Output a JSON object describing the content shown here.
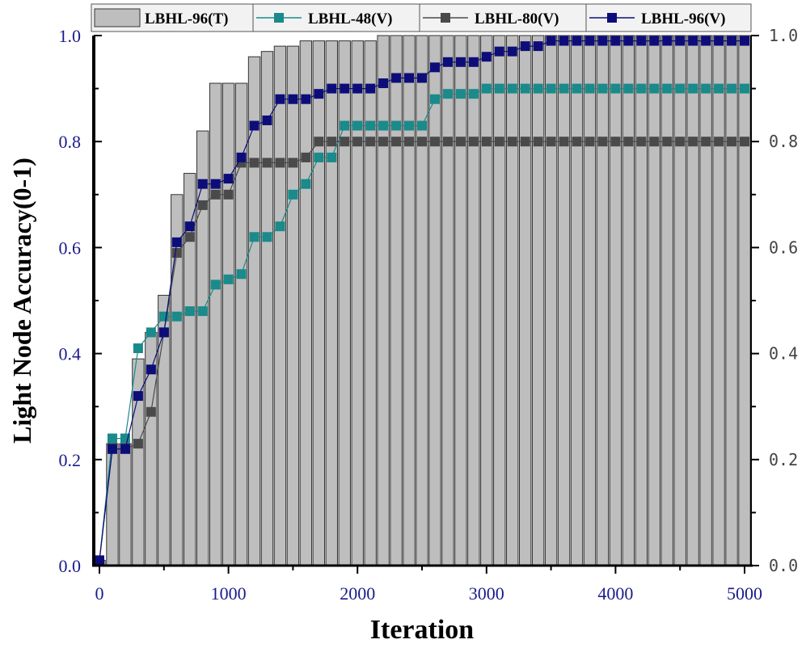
{
  "chart_data": {
    "type": "bar+line",
    "xlabel": "Iteration",
    "ylabel": "Light Node Accuracy(0-1)",
    "xlim": [
      0,
      5000
    ],
    "ylim": [
      0,
      1
    ],
    "x_ticks": [
      "0",
      "1000",
      "2000",
      "3000",
      "4000",
      "5000"
    ],
    "y_ticks_left": [
      "0.0",
      "0.2",
      "0.4",
      "0.6",
      "0.8",
      "1.0"
    ],
    "y_ticks_right": [
      "0.0",
      "0.2",
      "0.4",
      "0.6",
      "0.8",
      "1.0"
    ],
    "legend": {
      "placement": "top",
      "items": [
        "LBHL-96(T)",
        "LBHL-48(V)",
        "LBHL-80(V)",
        "LBHL-96(V)"
      ]
    },
    "x": [
      0,
      100,
      200,
      300,
      400,
      500,
      600,
      700,
      800,
      900,
      1000,
      1100,
      1200,
      1300,
      1400,
      1500,
      1600,
      1700,
      1800,
      1900,
      2000,
      2100,
      2200,
      2300,
      2400,
      2500,
      2600,
      2700,
      2800,
      2900,
      3000,
      3100,
      3200,
      3300,
      3400,
      3500,
      3600,
      3700,
      3800,
      3900,
      4000,
      4100,
      4200,
      4300,
      4400,
      4500,
      4600,
      4700,
      4800,
      4900,
      5000
    ],
    "series": [
      {
        "name": "LBHL-96(T)",
        "kind": "bar",
        "color": "#bebebe",
        "values": [
          0.01,
          0.23,
          0.23,
          0.39,
          0.44,
          0.51,
          0.7,
          0.74,
          0.82,
          0.91,
          0.91,
          0.91,
          0.96,
          0.97,
          0.98,
          0.98,
          0.99,
          0.99,
          0.99,
          0.99,
          0.99,
          0.99,
          1.0,
          1.0,
          1.0,
          1.0,
          1.0,
          1.0,
          1.0,
          1.0,
          1.0,
          1.0,
          1.0,
          1.0,
          1.0,
          1.0,
          1.0,
          1.0,
          1.0,
          1.0,
          1.0,
          1.0,
          1.0,
          1.0,
          1.0,
          1.0,
          1.0,
          1.0,
          1.0,
          1.0,
          1.0
        ]
      },
      {
        "name": "LBHL-48(V)",
        "kind": "line",
        "color": "#1a8a8a",
        "values": [
          0.01,
          0.24,
          0.24,
          0.41,
          0.44,
          0.47,
          0.47,
          0.48,
          0.48,
          0.53,
          0.54,
          0.55,
          0.62,
          0.62,
          0.64,
          0.7,
          0.72,
          0.77,
          0.77,
          0.83,
          0.83,
          0.83,
          0.83,
          0.83,
          0.83,
          0.83,
          0.88,
          0.89,
          0.89,
          0.89,
          0.9,
          0.9,
          0.9,
          0.9,
          0.9,
          0.9,
          0.9,
          0.9,
          0.9,
          0.9,
          0.9,
          0.9,
          0.9,
          0.9,
          0.9,
          0.9,
          0.9,
          0.9,
          0.9,
          0.9,
          0.9
        ]
      },
      {
        "name": "LBHL-80(V)",
        "kind": "line",
        "color": "#4a4a4a",
        "values": [
          0.01,
          0.22,
          0.22,
          0.23,
          0.29,
          0.44,
          0.59,
          0.62,
          0.68,
          0.7,
          0.7,
          0.76,
          0.76,
          0.76,
          0.76,
          0.76,
          0.77,
          0.8,
          0.8,
          0.8,
          0.8,
          0.8,
          0.8,
          0.8,
          0.8,
          0.8,
          0.8,
          0.8,
          0.8,
          0.8,
          0.8,
          0.8,
          0.8,
          0.8,
          0.8,
          0.8,
          0.8,
          0.8,
          0.8,
          0.8,
          0.8,
          0.8,
          0.8,
          0.8,
          0.8,
          0.8,
          0.8,
          0.8,
          0.8,
          0.8,
          0.8
        ]
      },
      {
        "name": "LBHL-96(V)",
        "kind": "line",
        "color": "#0d0d7a",
        "values": [
          0.01,
          0.22,
          0.22,
          0.32,
          0.37,
          0.44,
          0.61,
          0.64,
          0.72,
          0.72,
          0.73,
          0.77,
          0.83,
          0.84,
          0.88,
          0.88,
          0.88,
          0.89,
          0.9,
          0.9,
          0.9,
          0.9,
          0.91,
          0.92,
          0.92,
          0.92,
          0.94,
          0.95,
          0.95,
          0.95,
          0.96,
          0.97,
          0.97,
          0.98,
          0.98,
          0.99,
          0.99,
          0.99,
          0.99,
          0.99,
          0.99,
          0.99,
          0.99,
          0.99,
          0.99,
          0.99,
          0.99,
          0.99,
          0.99,
          0.99,
          0.99
        ]
      }
    ],
    "colors": {
      "tick_label_left": "#1a1a8c",
      "tick_label_bottom": "#1a1a8c",
      "tick_label_right": "#444444",
      "bar_stroke": "#333333"
    }
  }
}
